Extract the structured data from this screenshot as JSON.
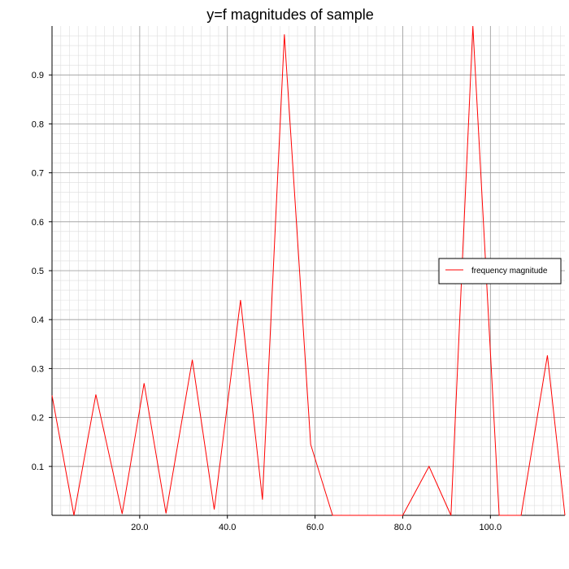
{
  "chart_data": {
    "type": "line",
    "title": "y=f magnitudes of sample",
    "xlabel": "",
    "ylabel": "",
    "xlim": [
      0,
      117
    ],
    "ylim": [
      0,
      1.0
    ],
    "x_ticks": [
      20,
      40,
      60,
      80,
      100
    ],
    "x_tick_labels": [
      "20.0",
      "40.0",
      "60.0",
      "80.0",
      "100.0"
    ],
    "y_ticks": [
      0.1,
      0.2,
      0.3,
      0.4,
      0.5,
      0.6,
      0.7,
      0.8,
      0.9
    ],
    "y_tick_labels": [
      "0.1",
      "0.2",
      "0.3",
      "0.4",
      "0.5",
      "0.6",
      "0.7",
      "0.8",
      "0.9"
    ],
    "grid": true,
    "legend_position": "right",
    "series": [
      {
        "name": "frequency magnitude",
        "color": "#ff0000",
        "x": [
          0,
          5,
          10,
          16,
          21,
          26,
          32,
          37,
          43,
          48,
          53,
          59,
          64,
          70,
          75,
          80,
          86,
          91,
          96,
          102,
          107,
          113,
          117
        ],
        "y": [
          0.245,
          0,
          0.247,
          0.003,
          0.27,
          0.004,
          0.318,
          0.012,
          0.44,
          0.032,
          0.983,
          0.145,
          0,
          0,
          0,
          0,
          0.1,
          0,
          1.0,
          0,
          0,
          0.327,
          0
        ]
      }
    ]
  }
}
